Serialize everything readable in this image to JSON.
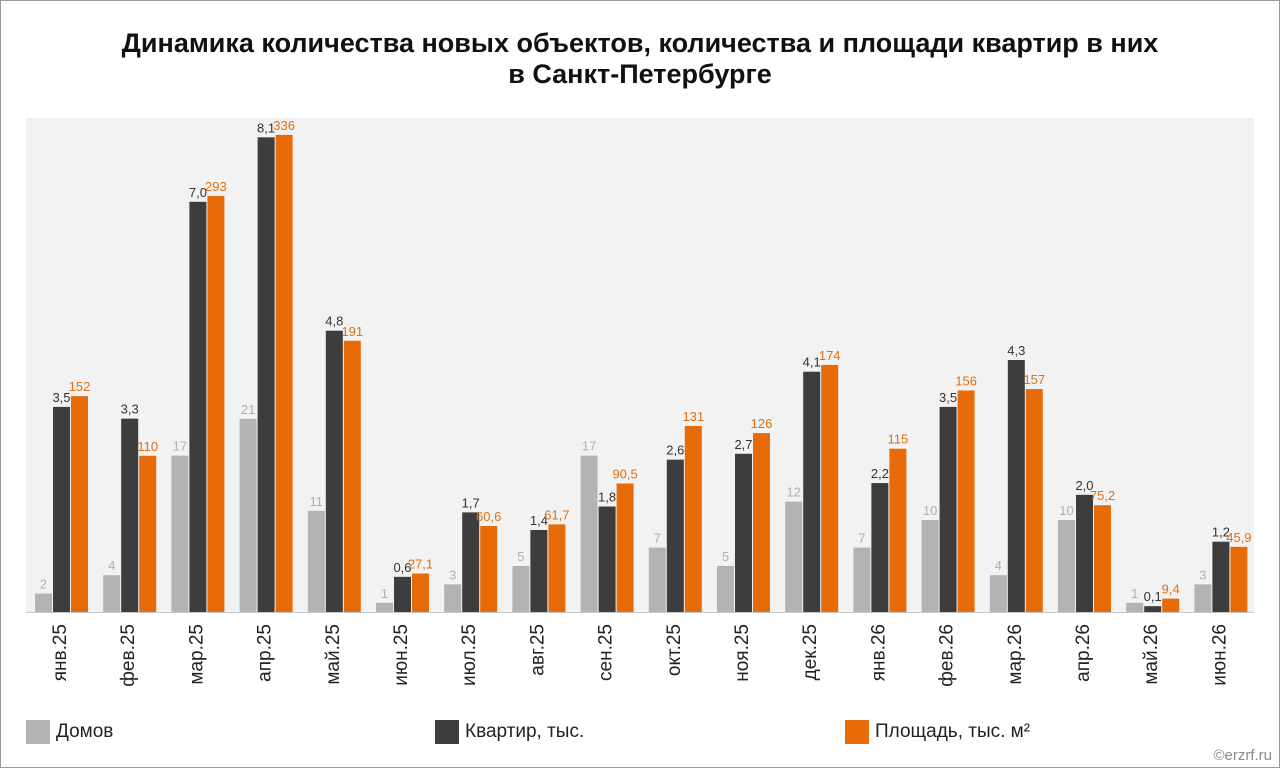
{
  "title_line1": "Динамика количества новых объектов, количества и площади квартир в них",
  "title_line2": "в Санкт-Петербурге",
  "credit": "©erzrf.ru",
  "colors": {
    "houses": "#b3b3b3",
    "flats": "#3d3d3d",
    "area": "#e86b0a",
    "plot_bg": "#f2f2f2"
  },
  "chart_data": {
    "type": "bar",
    "categories": [
      "янв.25",
      "фев.25",
      "мар.25",
      "апр.25",
      "май.25",
      "июн.25",
      "июл.25",
      "авг.25",
      "сен.25",
      "окт.25",
      "ноя.25",
      "дек.25",
      "янв.26",
      "фев.26",
      "мар.26",
      "апр.26",
      "май.26",
      "июн.26"
    ],
    "series": [
      {
        "name": "Домов",
        "values": [
          2,
          4,
          17,
          21,
          11,
          1,
          3,
          5,
          17,
          7,
          5,
          12,
          7,
          10,
          4,
          10,
          1,
          3
        ],
        "labels": [
          "2",
          "4",
          "17",
          "21",
          "11",
          "1",
          "3",
          "5",
          "17",
          "7",
          "5",
          "12",
          "7",
          "10",
          "4",
          "10",
          "1",
          "3"
        ]
      },
      {
        "name": "Квартир, тыс.",
        "values": [
          3.5,
          3.3,
          7.0,
          8.1,
          4.8,
          0.6,
          1.7,
          1.4,
          1.8,
          2.6,
          2.7,
          4.1,
          2.2,
          3.5,
          4.3,
          2.0,
          0.1,
          1.2
        ],
        "labels": [
          "3,5",
          "3,3",
          "7,0",
          "8,1",
          "4,8",
          "0,6",
          "1,7",
          "1,4",
          "1,8",
          "2,6",
          "2,7",
          "4,1",
          "2,2",
          "3,5",
          "4,3",
          "2,0",
          "0,1",
          "1,2"
        ]
      },
      {
        "name": "Площадь, тыс. м²",
        "values": [
          152,
          110,
          293,
          336,
          191,
          27.1,
          60.6,
          61.7,
          90.5,
          131,
          126,
          174,
          115,
          156,
          157,
          75.2,
          9.4,
          45.9
        ],
        "labels": [
          "152",
          "110",
          "293",
          "336",
          "191",
          "27,1",
          "60,6",
          "61,7",
          "90,5",
          "131",
          "126",
          "174",
          "115",
          "156",
          "157",
          "75,2",
          "9,4",
          "45,9"
        ]
      }
    ],
    "legend_position": "bottom",
    "grid": false
  }
}
